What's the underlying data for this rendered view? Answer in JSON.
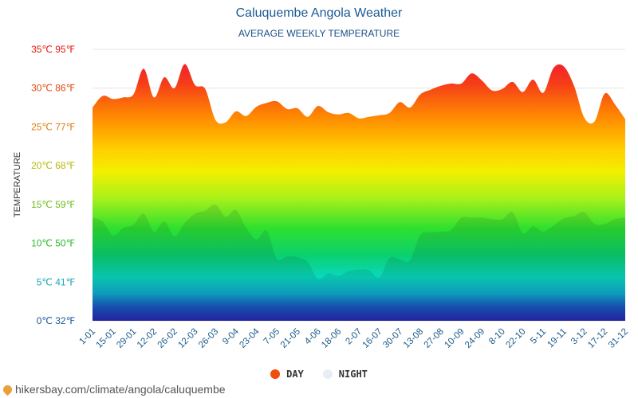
{
  "page": {
    "footer": "hikersbay.com/climate/angola/caluquembe",
    "footer_icon": "map-pin-icon"
  },
  "chart_data": {
    "type": "area",
    "title": "Caluquembe Angola Weather",
    "subtitle": "AVERAGE WEEKLY TEMPERATURE",
    "ylabel": "TEMPERATURE",
    "ylim": [
      0,
      35
    ],
    "grid": true,
    "legend_placement": "bottom-center",
    "y_ticks": [
      {
        "value": 0,
        "label": "0℃ 32℉",
        "color": "#1a5aa0"
      },
      {
        "value": 5,
        "label": "5℃ 41℉",
        "color": "#1aa6b8"
      },
      {
        "value": 10,
        "label": "10℃ 50℉",
        "color": "#2fb82f"
      },
      {
        "value": 15,
        "label": "15℃ 59℉",
        "color": "#6cbf1a"
      },
      {
        "value": 20,
        "label": "20℃ 68℉",
        "color": "#b8b80a"
      },
      {
        "value": 25,
        "label": "25℃ 77℉",
        "color": "#e07a10"
      },
      {
        "value": 30,
        "label": "30℃ 86℉",
        "color": "#e04a10"
      },
      {
        "value": 35,
        "label": "35℃ 95℉",
        "color": "#e01a10"
      }
    ],
    "x_tick_labels": [
      "1-01",
      "15-01",
      "29-01",
      "12-02",
      "26-02",
      "12-03",
      "26-03",
      "9-04",
      "23-04",
      "7-05",
      "21-05",
      "4-06",
      "18-06",
      "2-07",
      "16-07",
      "30-07",
      "13-08",
      "27-08",
      "10-09",
      "24-09",
      "8-10",
      "22-10",
      "5-11",
      "19-11",
      "3-12",
      "17-12",
      "31-12"
    ],
    "n_weeks": 53,
    "series": [
      {
        "name": "DAY",
        "color": "#f04e0a",
        "values": [
          27.5,
          29.0,
          28.6,
          28.8,
          29.2,
          32.5,
          28.8,
          31.4,
          30.0,
          33.1,
          30.4,
          29.9,
          25.9,
          25.6,
          27.0,
          26.4,
          27.6,
          28.1,
          28.3,
          27.3,
          27.4,
          26.3,
          27.7,
          26.9,
          26.6,
          26.8,
          26.1,
          26.3,
          26.5,
          26.8,
          28.2,
          27.5,
          29.2,
          29.8,
          30.3,
          30.6,
          30.6,
          31.9,
          31.0,
          29.7,
          29.9,
          30.8,
          29.5,
          31.1,
          29.4,
          32.6,
          32.8,
          30.3,
          26.2,
          25.7,
          29.3,
          27.9,
          26.0
        ]
      },
      {
        "name": "NIGHT",
        "color": "#e8edf3",
        "values": [
          13.3,
          12.8,
          11.0,
          12.0,
          12.4,
          13.8,
          11.5,
          12.8,
          10.9,
          12.6,
          13.8,
          14.2,
          15.0,
          13.4,
          14.3,
          12.0,
          10.5,
          11.6,
          8.0,
          8.3,
          8.2,
          7.6,
          5.4,
          6.1,
          5.8,
          6.4,
          6.6,
          6.5,
          5.6,
          8.1,
          7.9,
          7.8,
          11.1,
          11.4,
          11.5,
          11.7,
          13.3,
          13.3,
          13.3,
          13.1,
          13.1,
          14.0,
          11.3,
          12.2,
          11.5,
          12.3,
          13.2,
          13.5,
          14.0,
          12.5,
          12.5,
          13.1,
          13.3
        ]
      }
    ]
  }
}
